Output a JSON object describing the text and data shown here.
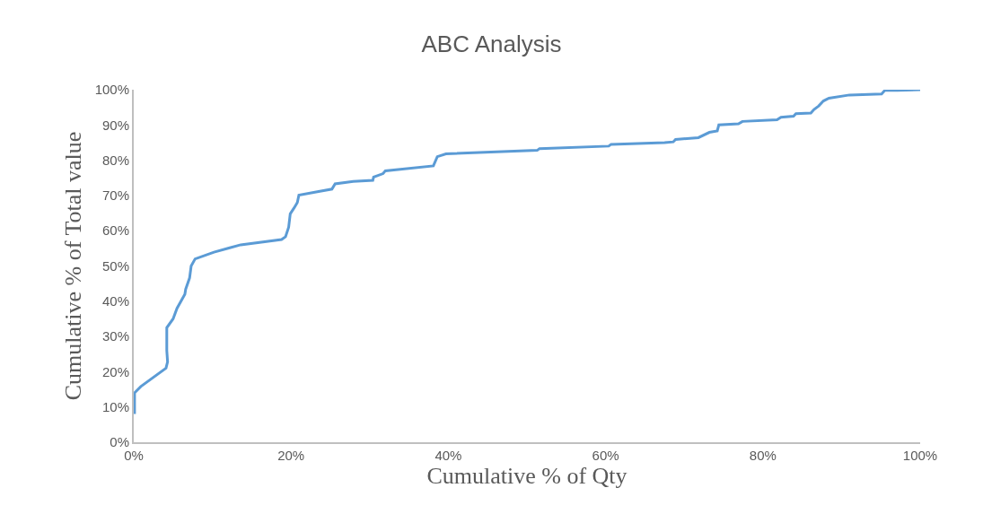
{
  "chart_data": {
    "type": "line",
    "title": "ABC Analysis",
    "xlabel": "Cumulative % of Qty",
    "ylabel": "Cumulative % of Total value",
    "x": [
      0.1,
      0.1,
      0.9,
      4.1,
      4.3,
      4.2,
      4.2,
      5.0,
      5.5,
      6.5,
      6.6,
      7.1,
      7.3,
      7.8,
      10.2,
      12.1,
      13.6,
      18.8,
      19.3,
      19.7,
      19.9,
      20.4,
      20.8,
      21,
      23.5,
      25.2,
      25.6,
      27.9,
      30.4,
      30.5,
      31.7,
      32,
      38.1,
      38.6,
      39.7,
      51.3,
      51.6,
      60.4,
      60.7,
      67.5,
      68.6,
      68.9,
      71.8,
      73.2,
      74.2,
      74.4,
      76.9,
      77.4,
      81.8,
      82.3,
      83.9,
      84.2,
      86.1,
      86.5,
      87.1,
      87.7,
      88.4,
      91,
      95.1,
      95.5,
      97.1,
      100
    ],
    "series": [
      {
        "color": "#5b9bd5",
        "values": [
          8,
          14,
          15.8,
          21,
          22.8,
          26,
          32.5,
          35,
          38,
          42,
          43.4,
          46.6,
          50,
          52,
          53.9,
          55.1,
          56,
          57.5,
          58.3,
          61,
          64.8,
          66.5,
          68,
          70.1,
          71.1,
          71.8,
          73.3,
          74,
          74.3,
          75.2,
          76.2,
          77,
          78.4,
          81,
          81.8,
          82.8,
          83.3,
          84,
          84.5,
          85,
          85.2,
          85.9,
          86.4,
          87.9,
          88.3,
          90,
          90.3,
          91,
          91.5,
          92.2,
          92.5,
          93.2,
          93.4,
          94.4,
          95.4,
          96.8,
          97.6,
          98.5,
          98.8,
          99.8,
          99.8,
          100
        ]
      }
    ],
    "xlim": [
      0,
      100
    ],
    "xticks": [
      {
        "value": 0,
        "label": "0%"
      },
      {
        "value": 20,
        "label": "20%"
      },
      {
        "value": 40,
        "label": "40%"
      },
      {
        "value": 60,
        "label": "60%"
      },
      {
        "value": 80,
        "label": "80%"
      },
      {
        "value": 100,
        "label": "100%"
      }
    ],
    "ylim": [
      0,
      100
    ],
    "yticks": [
      {
        "value": 0,
        "label": "0%"
      },
      {
        "value": 10,
        "label": "10%"
      },
      {
        "value": 20,
        "label": "20%"
      },
      {
        "value": 30,
        "label": "30%"
      },
      {
        "value": 40,
        "label": "40%"
      },
      {
        "value": 50,
        "label": "50%"
      },
      {
        "value": 60,
        "label": "60%"
      },
      {
        "value": 70,
        "label": "70%"
      },
      {
        "value": 80,
        "label": "80%"
      },
      {
        "value": 90,
        "label": "90%"
      },
      {
        "value": 100,
        "label": "100%"
      }
    ],
    "grid": false,
    "marker": "none",
    "line_style": "solid"
  }
}
